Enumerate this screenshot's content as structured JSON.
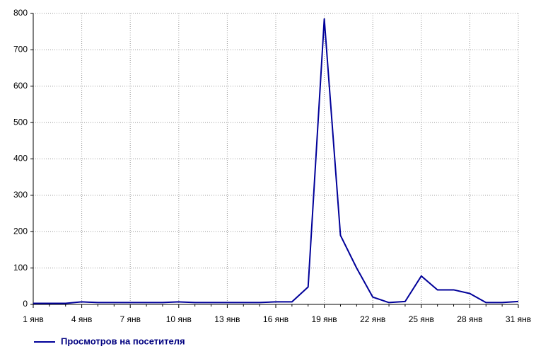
{
  "chart_data": {
    "type": "line",
    "categories": [
      "1 янв",
      null,
      null,
      "4 янв",
      null,
      null,
      "7 янв",
      null,
      null,
      "10 янв",
      null,
      null,
      "13 янв",
      null,
      null,
      "16 янв",
      null,
      null,
      "19 янв",
      null,
      null,
      "22 янв",
      null,
      null,
      "25 янв",
      null,
      null,
      "28 янв",
      null,
      null,
      "31 янв"
    ],
    "series": [
      {
        "name": "Просмотров на посетителя",
        "color": "#000099",
        "values": [
          3,
          3,
          3,
          7,
          5,
          5,
          5,
          5,
          5,
          7,
          5,
          5,
          5,
          5,
          5,
          7,
          7,
          48,
          785,
          190,
          100,
          20,
          5,
          8,
          78,
          40,
          40,
          30,
          5,
          5,
          8
        ]
      }
    ],
    "ylim": [
      0,
      800
    ],
    "yticks": [
      0,
      100,
      200,
      300,
      400,
      500,
      600,
      700,
      800
    ],
    "grid": true
  }
}
